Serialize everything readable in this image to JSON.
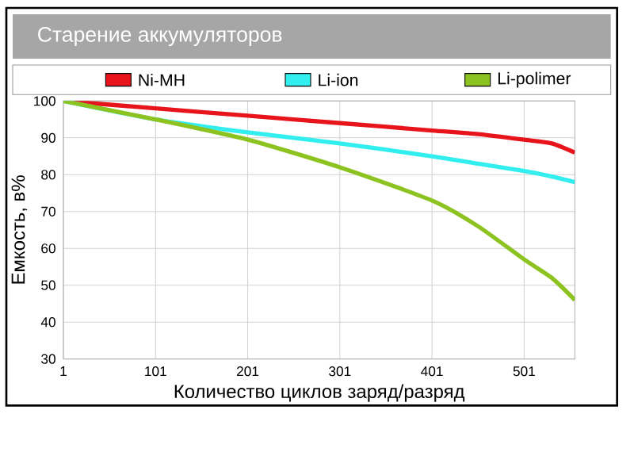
{
  "chart_data": {
    "type": "line",
    "title": "Старение аккумуляторов",
    "xlabel": "Количество циклов заряд/разряд",
    "ylabel": "Емкость, в%",
    "x": [
      1,
      101,
      201,
      301,
      401,
      451,
      501,
      531,
      556
    ],
    "series": [
      {
        "name": "Ni-MH",
        "color": "#e8141c",
        "values": [
          100,
          98,
          96,
          94,
          92,
          91,
          89.5,
          88.5,
          86
        ]
      },
      {
        "name": "Li-ion",
        "color": "#33eeee",
        "values": [
          100,
          95,
          91.5,
          88.5,
          85,
          83,
          81,
          79.5,
          78
        ]
      },
      {
        "name": "Li-polimer",
        "color": "#8cc320",
        "values": [
          100,
          95,
          89.5,
          82,
          73,
          66,
          57,
          52,
          46
        ]
      }
    ],
    "xlim": [
      1,
      556
    ],
    "xticks": [
      1,
      101,
      201,
      301,
      401,
      501
    ],
    "ylim": [
      30,
      100
    ],
    "yticks": [
      30,
      40,
      50,
      60,
      70,
      80,
      90,
      100
    ],
    "grid": true,
    "legend": "top",
    "marker": "none",
    "line_style": "solid"
  }
}
